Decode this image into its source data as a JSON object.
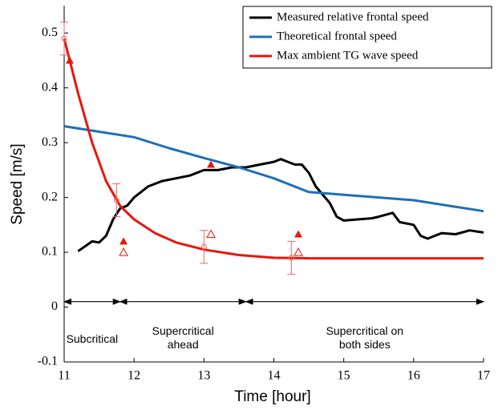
{
  "chart_data": {
    "type": "line",
    "xlabel": "Time [hour]",
    "ylabel": "Speed [m/s]",
    "xlim": [
      11,
      17
    ],
    "xticks": [
      11,
      12,
      13,
      14,
      15,
      16,
      17
    ],
    "ylim": [
      -0.1,
      0.55
    ],
    "yticks": [
      -0.1,
      0,
      0.1,
      0.2,
      0.3,
      0.4,
      0.5
    ],
    "legend": "upper right",
    "series": [
      {
        "name": "Measured relative frontal speed",
        "color": "#000000",
        "x": [
          11.2,
          11.4,
          11.5,
          11.6,
          11.7,
          11.8,
          11.9,
          12,
          12.2,
          12.4,
          12.6,
          12.8,
          13,
          13.2,
          13.4,
          13.6,
          13.8,
          14,
          14.1,
          14.2,
          14.3,
          14.4,
          14.5,
          14.6,
          14.8,
          14.9,
          15,
          15.2,
          15.4,
          15.5,
          15.7,
          15.8,
          16,
          16.1,
          16.2,
          16.4,
          16.6,
          16.8,
          17
        ],
        "values": [
          0.102,
          0.12,
          0.118,
          0.13,
          0.16,
          0.18,
          0.185,
          0.2,
          0.22,
          0.23,
          0.235,
          0.24,
          0.25,
          0.25,
          0.255,
          0.255,
          0.26,
          0.265,
          0.27,
          0.265,
          0.26,
          0.26,
          0.245,
          0.22,
          0.19,
          0.165,
          0.158,
          0.16,
          0.162,
          0.165,
          0.172,
          0.155,
          0.15,
          0.13,
          0.125,
          0.135,
          0.133,
          0.14,
          0.136
        ]
      },
      {
        "name": "Theoretical frontal speed",
        "color": "#1f6fb8",
        "x": [
          11,
          11.5,
          12,
          12.5,
          13,
          13.5,
          14,
          14.5,
          15,
          15.5,
          16,
          16.5,
          17
        ],
        "values": [
          0.33,
          0.32,
          0.31,
          0.29,
          0.272,
          0.255,
          0.235,
          0.21,
          0.205,
          0.2,
          0.195,
          0.185,
          0.175
        ]
      },
      {
        "name": "Max ambient TG wave speed",
        "color": "#e8160c",
        "x": [
          11,
          11.2,
          11.4,
          11.6,
          11.8,
          12,
          12.3,
          12.6,
          13,
          13.5,
          14,
          14.5,
          15,
          17
        ],
        "values": [
          0.49,
          0.39,
          0.3,
          0.23,
          0.185,
          0.16,
          0.135,
          0.118,
          0.105,
          0.095,
          0.09,
          0.089,
          0.089,
          0.089
        ]
      }
    ],
    "error_points": {
      "color": "#ee6666",
      "x": [
        11,
        11.75,
        13,
        14.25
      ],
      "values": [
        0.49,
        0.195,
        0.11,
        0.09
      ],
      "errors": [
        0.03,
        0.03,
        0.03,
        0.03
      ]
    },
    "filled_triangles": {
      "color": "#e8160c",
      "x": [
        11.08,
        11.85,
        13.1,
        14.35
      ],
      "values": [
        0.45,
        0.12,
        0.26,
        0.133
      ]
    },
    "open_triangles": {
      "color": "#e8160c",
      "x": [
        11.85,
        13.1,
        14.35
      ],
      "values": [
        0.1,
        0.133,
        0.1
      ]
    },
    "regions": [
      {
        "start": 11,
        "end": 11.8,
        "label": [
          "Subcritical"
        ]
      },
      {
        "start": 11.8,
        "end": 13.6,
        "label": [
          "Supercritical",
          "ahead"
        ]
      },
      {
        "start": 13.6,
        "end": 17,
        "label": [
          "Supercritical on",
          "both sides"
        ]
      }
    ],
    "region_arrow_y": 0.01,
    "region_label_y": [
      -0.045,
      -0.07
    ]
  }
}
